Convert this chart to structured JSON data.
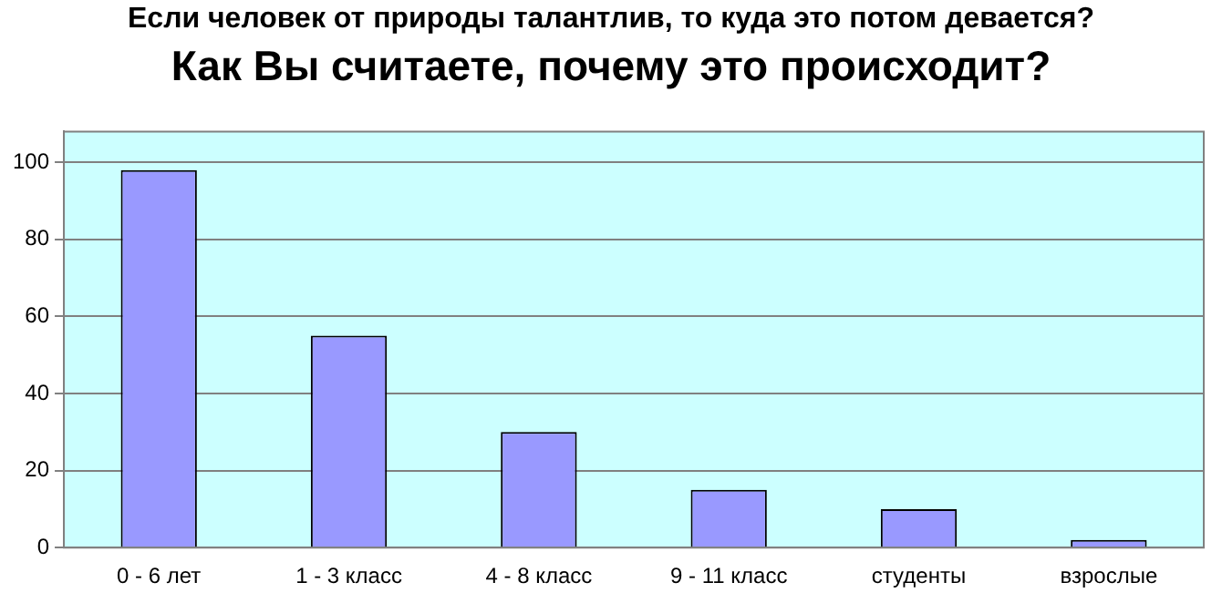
{
  "chart_data": {
    "type": "bar",
    "title": "Если человек от природы талантлив, то куда это потом девается?",
    "subtitle": "Как Вы считаете, почему это происходит?",
    "categories": [
      "0 - 6 лет",
      "1 - 3 класс",
      "4 - 8 класс",
      "9 - 11 класс",
      "студенты",
      "взрослые"
    ],
    "values": [
      98,
      55,
      30,
      15,
      10,
      2
    ],
    "color": "#9999ff",
    "ylim": [
      0,
      108
    ],
    "yticks": [
      0,
      20,
      40,
      60,
      80,
      100
    ],
    "grid": "y",
    "legend": false
  }
}
